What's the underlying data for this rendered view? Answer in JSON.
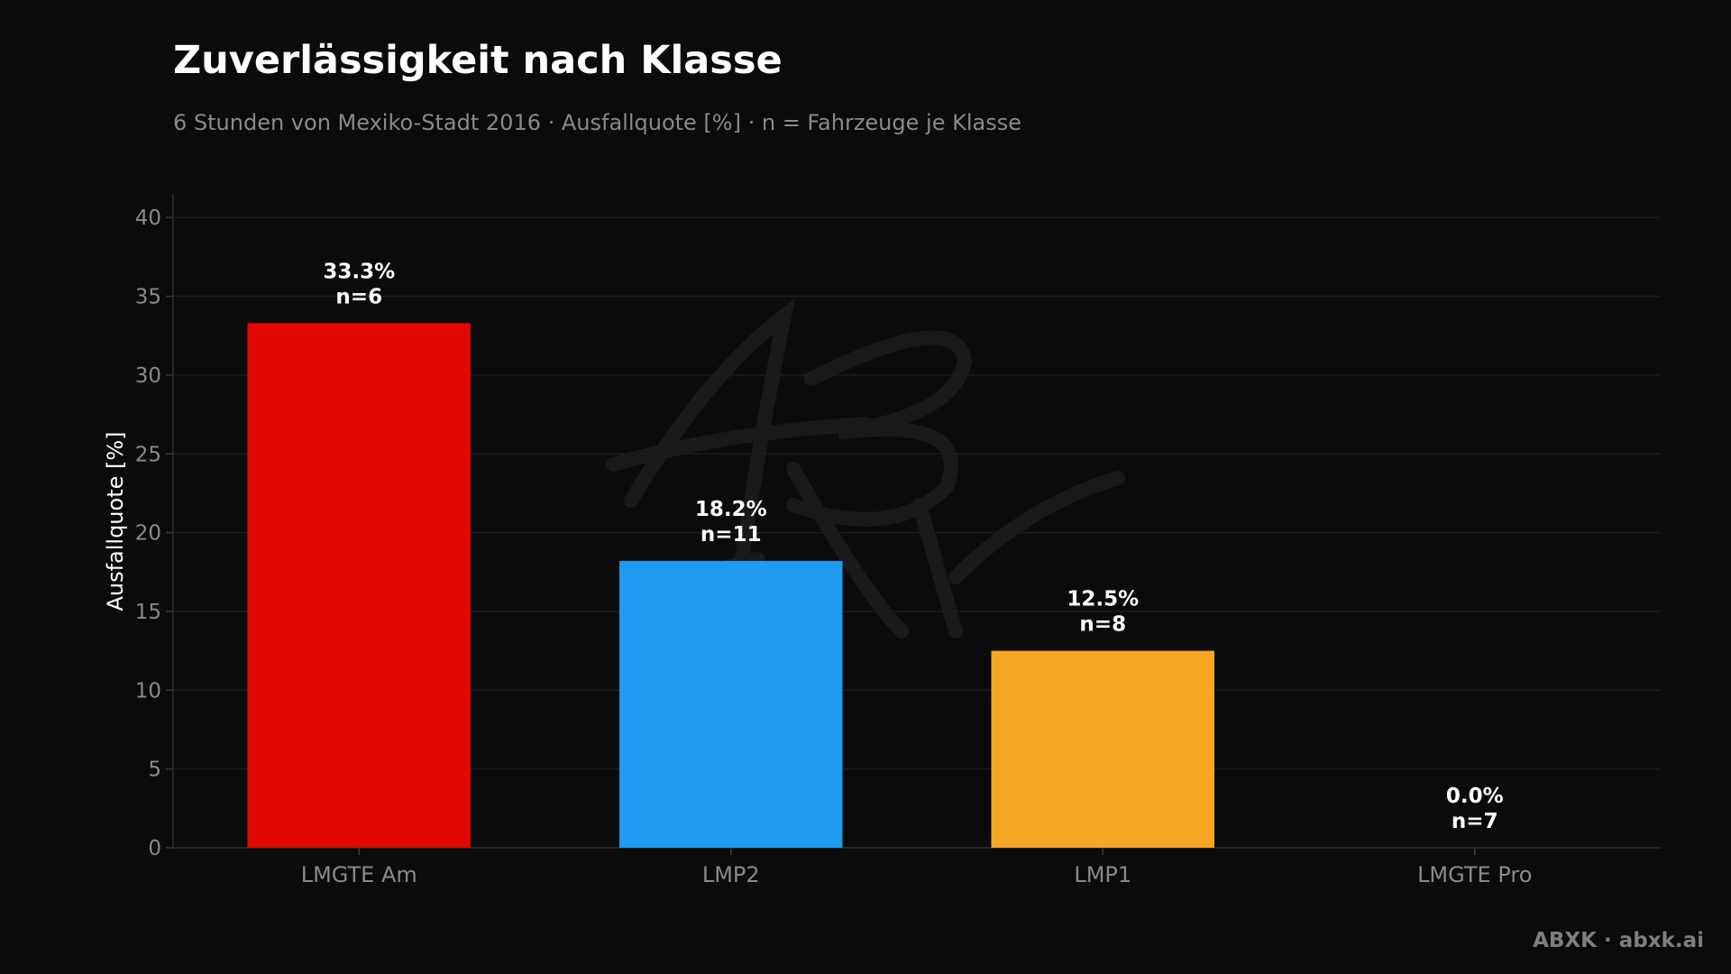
{
  "chart_data": {
    "type": "bar",
    "title": "Zuverlässigkeit nach Klasse",
    "subtitle": "6 Stunden von Mexiko-Stadt 2016 · Ausfallquote [%] · n = Fahrzeuge je Klasse",
    "xlabel": "",
    "ylabel": "Ausfallquote [%]",
    "categories": [
      "LMGTE Am",
      "LMP2",
      "LMP1",
      "LMGTE Pro"
    ],
    "values": [
      33.3,
      18.2,
      12.5,
      0.0
    ],
    "value_labels": [
      "33.3%",
      "18.2%",
      "12.5%",
      "0.0%"
    ],
    "n_labels": [
      "n=6",
      "n=11",
      "n=8",
      "n=7"
    ],
    "colors": [
      "#e00800",
      "#1e9bf0",
      "#f5a623",
      "#8a8a8a"
    ],
    "ylim": [
      0,
      41.5
    ],
    "yticks": [
      0,
      5,
      10,
      15,
      20,
      25,
      30,
      35,
      40
    ],
    "grid": true,
    "legend": "none"
  },
  "footer": "ABXK · abxk.ai",
  "watermark": "ABXK"
}
